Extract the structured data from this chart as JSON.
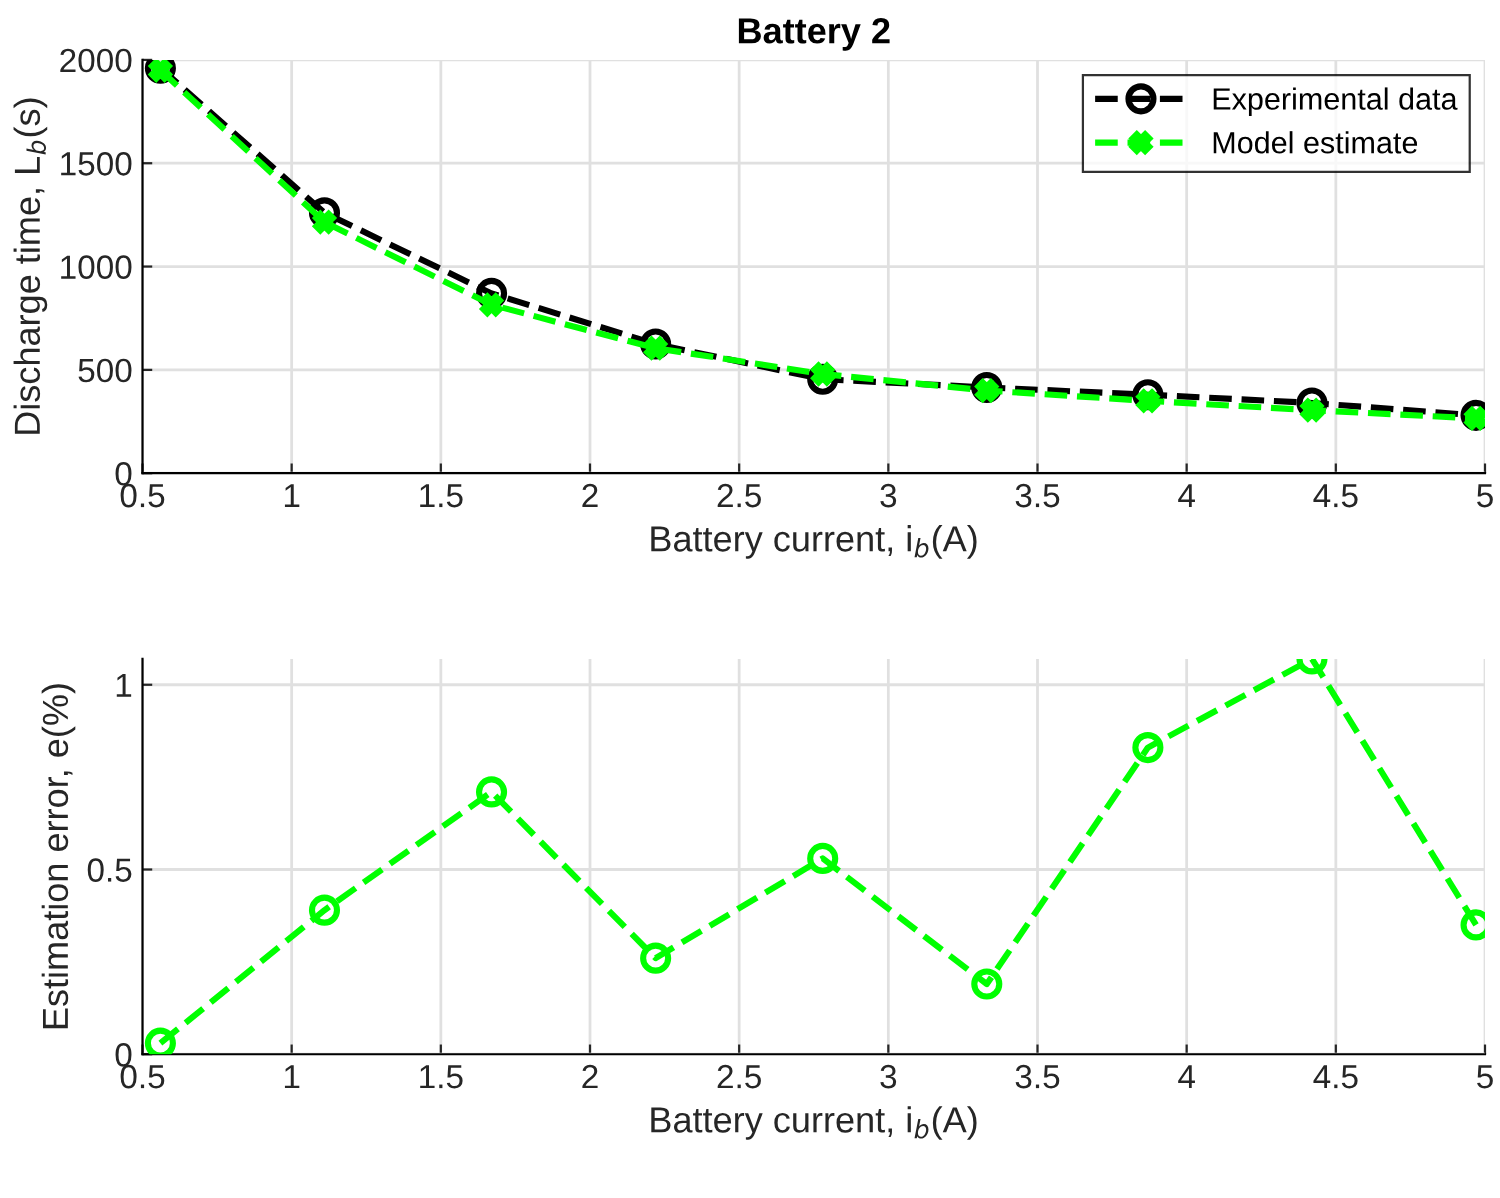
{
  "chart_data": [
    {
      "type": "line",
      "title": "Battery 2",
      "xlabel": "Battery current, i$_{b}$(A)",
      "ylabel": "Discharge time, L$_{b}$(s)",
      "x": [
        0.56,
        1.11,
        1.67,
        2.22,
        2.78,
        3.33,
        3.87,
        4.42,
        4.97
      ],
      "series": [
        {
          "name": "Experimental data",
          "color": "#000000",
          "marker": "circle",
          "values": [
            1960,
            1260,
            870,
            625,
            455,
            415,
            380,
            340,
            280
          ]
        },
        {
          "name": "Model estimate",
          "color": "#00ff00",
          "marker": "cross",
          "values": [
            1950,
            1215,
            815,
            605,
            480,
            400,
            350,
            305,
            265
          ]
        }
      ],
      "xlim": [
        0.5,
        5
      ],
      "xticks": [
        0.5,
        1,
        1.5,
        2,
        2.5,
        3,
        3.5,
        4,
        4.5,
        5
      ],
      "ylim": [
        0,
        2000
      ],
      "yticks": [
        0,
        500,
        1000,
        1500,
        2000
      ],
      "grid": true,
      "legend": "top right",
      "line_style": "dashed"
    },
    {
      "type": "line",
      "xlabel": "Battery current, i$_{b}$(A)",
      "ylabel": "Estimation error, e(%)",
      "x": [
        0.56,
        1.11,
        1.67,
        2.22,
        2.78,
        3.33,
        3.87,
        4.42,
        4.97
      ],
      "series": [
        {
          "color": "#00ff00",
          "marker": "circle",
          "values": [
            0.03,
            0.39,
            0.71,
            0.26,
            0.53,
            0.19,
            0.83,
            1.07,
            0.35
          ]
        }
      ],
      "xlim": [
        0.5,
        5
      ],
      "xticks": [
        0.5,
        1,
        1.5,
        2,
        2.5,
        3,
        3.5,
        4,
        4.5,
        5
      ],
      "ylim": [
        0,
        1.07
      ],
      "yticks": [
        0,
        0.5,
        1
      ],
      "grid": true,
      "legend": false,
      "line_style": "dashed"
    }
  ]
}
